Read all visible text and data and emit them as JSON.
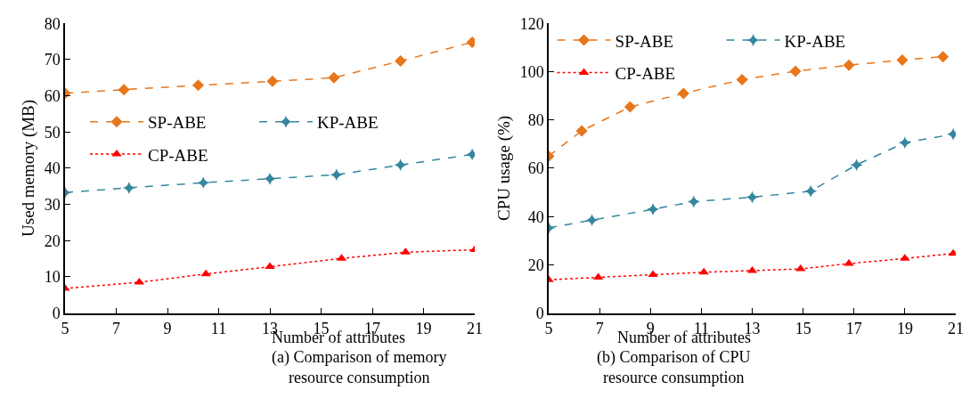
{
  "chart_data": [
    {
      "type": "line",
      "title": "(a) Comparison of memory resource consumption",
      "xlabel": "Number of attributes",
      "ylabel": "Used memory (MB)",
      "xlim": [
        5,
        21
      ],
      "xticks": [
        5,
        7,
        9,
        11,
        13,
        15,
        17,
        19,
        21
      ],
      "ylim": [
        0,
        80
      ],
      "yticks": [
        0,
        10,
        20,
        30,
        40,
        50,
        60,
        70,
        80
      ],
      "legend": "left",
      "series": [
        {
          "name": "SP-ABE",
          "color": "#e8761a",
          "marker": "diamond",
          "line_style": "dashed",
          "x": [
            5,
            7.3,
            10.2,
            13.1,
            15.5,
            18.1,
            20.9
          ],
          "values": [
            60.7,
            61.7,
            62.9,
            64,
            65,
            69.6,
            74.8
          ]
        },
        {
          "name": "KP-ABE",
          "color": "#35869e",
          "marker": "star",
          "line_style": "dashed",
          "x": [
            5,
            7.5,
            10.4,
            13.0,
            15.6,
            18.1,
            20.9
          ],
          "values": [
            33.3,
            34.6,
            36,
            37.1,
            38.2,
            40.9,
            43.8
          ]
        },
        {
          "name": "CP-ABE",
          "color": "#ff0000",
          "marker": "triangle",
          "line_style": "dotted",
          "x": [
            5,
            7.9,
            10.5,
            13,
            15.8,
            18.3,
            21
          ],
          "values": [
            6.8,
            8.5,
            10.8,
            12.8,
            15.1,
            16.8,
            17.5
          ]
        }
      ]
    },
    {
      "type": "line",
      "title": "(b) Comparison of CPU resource consumption",
      "xlabel": "Number of attributes",
      "ylabel": "CPU usage (%)",
      "xlim": [
        5,
        21
      ],
      "xticks": [
        5,
        7,
        9,
        11,
        13,
        15,
        17,
        19,
        21
      ],
      "ylim": [
        0,
        120
      ],
      "yticks": [
        0,
        20,
        40,
        60,
        80,
        100,
        120
      ],
      "legend": "top left",
      "series": [
        {
          "name": "SP-ABE",
          "color": "#e8761a",
          "marker": "diamond",
          "line_style": "dashed",
          "x": [
            5,
            6.3,
            8.2,
            10.3,
            12.6,
            14.7,
            16.8,
            18.9,
            20.5
          ],
          "values": [
            65,
            75.5,
            85.4,
            91,
            96.7,
            100.2,
            102.7,
            104.8,
            106.2
          ]
        },
        {
          "name": "KP-ABE",
          "color": "#35869e",
          "marker": "star",
          "line_style": "dashed",
          "x": [
            5,
            6.7,
            9.1,
            10.7,
            13,
            15.3,
            17.1,
            19.0,
            20.9
          ],
          "values": [
            35.3,
            38.5,
            43,
            46.2,
            48,
            50.5,
            61.4,
            70.6,
            74.1
          ]
        },
        {
          "name": "CP-ABE",
          "color": "#ff0000",
          "marker": "triangle",
          "line_style": "dotted",
          "x": [
            5,
            6.95,
            9.1,
            11.1,
            13,
            14.9,
            16.8,
            19,
            20.9
          ],
          "values": [
            13.8,
            14.8,
            15.9,
            16.9,
            17.6,
            18.3,
            20.5,
            22.6,
            24.7
          ]
        }
      ]
    }
  ]
}
